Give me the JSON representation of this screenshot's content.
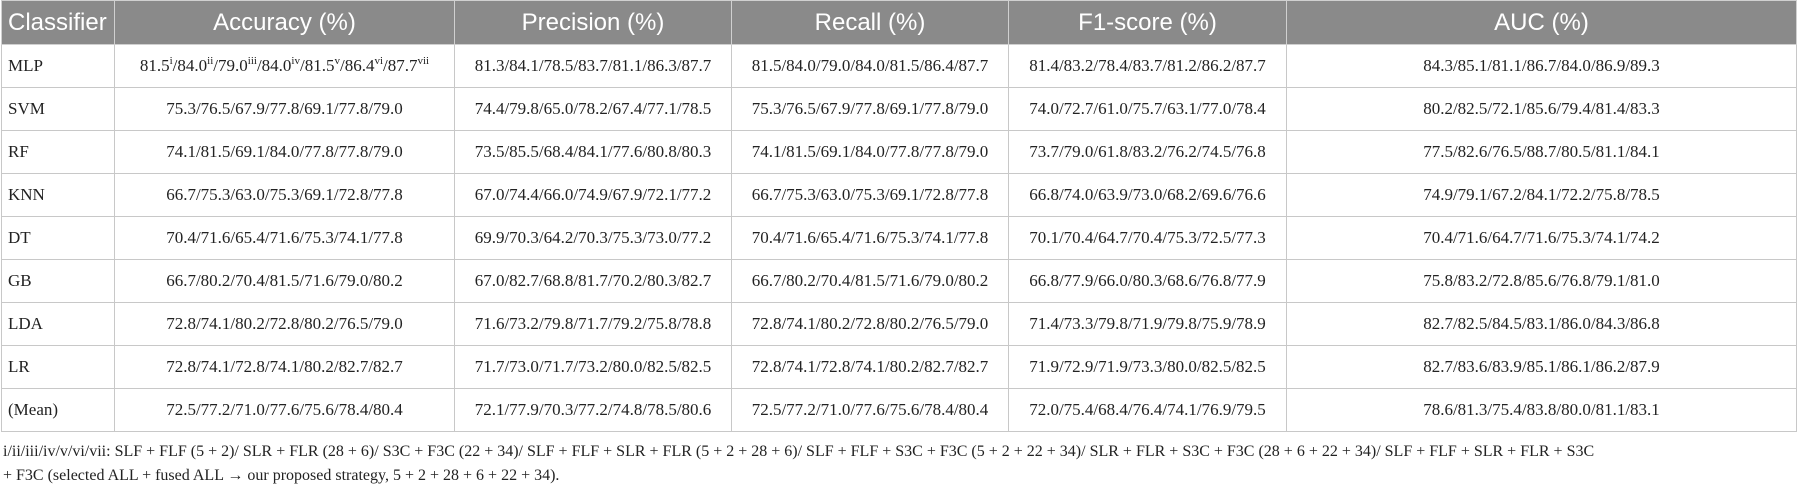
{
  "table": {
    "headers": [
      "Classifier",
      "Accuracy (%)",
      "Precision (%)",
      "Recall (%)",
      "F1-score (%)",
      "AUC (%)"
    ],
    "mlp_accuracy": [
      {
        "v": "81.5",
        "s": "i"
      },
      {
        "v": "/84.0",
        "s": "ii"
      },
      {
        "v": "/79.0",
        "s": "iii"
      },
      {
        "v": "/84.0",
        "s": "iv"
      },
      {
        "v": "/81.5",
        "s": "v"
      },
      {
        "v": "/86.4",
        "s": "vi"
      },
      {
        "v": "/87.7",
        "s": "vii"
      }
    ],
    "rows": [
      [
        "MLP",
        "",
        "81.3/84.1/78.5/83.7/81.1/86.3/87.7",
        "81.5/84.0/79.0/84.0/81.5/86.4/87.7",
        "81.4/83.2/78.4/83.7/81.2/86.2/87.7",
        "84.3/85.1/81.1/86.7/84.0/86.9/89.3"
      ],
      [
        "SVM",
        "75.3/76.5/67.9/77.8/69.1/77.8/79.0",
        "74.4/79.8/65.0/78.2/67.4/77.1/78.5",
        "75.3/76.5/67.9/77.8/69.1/77.8/79.0",
        "74.0/72.7/61.0/75.7/63.1/77.0/78.4",
        "80.2/82.5/72.1/85.6/79.4/81.4/83.3"
      ],
      [
        "RF",
        "74.1/81.5/69.1/84.0/77.8/77.8/79.0",
        "73.5/85.5/68.4/84.1/77.6/80.8/80.3",
        "74.1/81.5/69.1/84.0/77.8/77.8/79.0",
        "73.7/79.0/61.8/83.2/76.2/74.5/76.8",
        "77.5/82.6/76.5/88.7/80.5/81.1/84.1"
      ],
      [
        "KNN",
        "66.7/75.3/63.0/75.3/69.1/72.8/77.8",
        "67.0/74.4/66.0/74.9/67.9/72.1/77.2",
        "66.7/75.3/63.0/75.3/69.1/72.8/77.8",
        "66.8/74.0/63.9/73.0/68.2/69.6/76.6",
        "74.9/79.1/67.2/84.1/72.2/75.8/78.5"
      ],
      [
        "DT",
        "70.4/71.6/65.4/71.6/75.3/74.1/77.8",
        "69.9/70.3/64.2/70.3/75.3/73.0/77.2",
        "70.4/71.6/65.4/71.6/75.3/74.1/77.8",
        "70.1/70.4/64.7/70.4/75.3/72.5/77.3",
        "70.4/71.6/64.7/71.6/75.3/74.1/74.2"
      ],
      [
        "GB",
        "66.7/80.2/70.4/81.5/71.6/79.0/80.2",
        "67.0/82.7/68.8/81.7/70.2/80.3/82.7",
        "66.7/80.2/70.4/81.5/71.6/79.0/80.2",
        "66.8/77.9/66.0/80.3/68.6/76.8/77.9",
        "75.8/83.2/72.8/85.6/76.8/79.1/81.0"
      ],
      [
        "LDA",
        "72.8/74.1/80.2/72.8/80.2/76.5/79.0",
        "71.6/73.2/79.8/71.7/79.2/75.8/78.8",
        "72.8/74.1/80.2/72.8/80.2/76.5/79.0",
        "71.4/73.3/79.8/71.9/79.8/75.9/78.9",
        "82.7/82.5/84.5/83.1/86.0/84.3/86.8"
      ],
      [
        "LR",
        "72.8/74.1/72.8/74.1/80.2/82.7/82.7",
        "71.7/73.0/71.7/73.2/80.0/82.5/82.5",
        "72.8/74.1/72.8/74.1/80.2/82.7/82.7",
        "71.9/72.9/71.9/73.3/80.0/82.5/82.5",
        "82.7/83.6/83.9/85.1/86.1/86.2/87.9"
      ],
      [
        "(Mean)",
        "72.5/77.2/71.0/77.6/75.6/78.4/80.4",
        "72.1/77.9/70.3/77.2/74.8/78.5/80.6",
        "72.5/77.2/71.0/77.6/75.6/78.4/80.4",
        "72.0/75.4/68.4/76.4/74.1/76.9/79.5",
        "78.6/81.3/75.4/83.8/80.0/81.1/83.1"
      ]
    ]
  },
  "footnote": {
    "line1": "i/ii/iii/iv/v/vi/vii: SLF + FLF (5 + 2)/ SLR + FLR (28 + 6)/ S3C + F3C (22 + 34)/ SLF + FLF + SLR + FLR (5 + 2 + 28 + 6)/ SLF + FLF + S3C + F3C (5 + 2 + 22 + 34)/ SLR + FLR + S3C + F3C (28 + 6 + 22 + 34)/ SLF + FLF + SLR + FLR + S3C",
    "line2": "+ F3C (selected ALL + fused ALL → our proposed strategy, 5 + 2 + 28 + 6 + 22 + 34)."
  }
}
